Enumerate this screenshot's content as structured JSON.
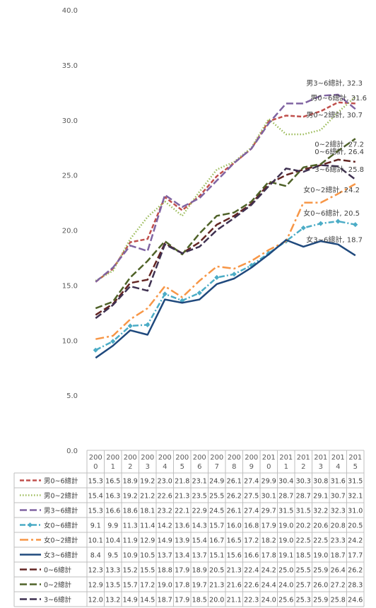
{
  "chart_data": {
    "type": "line",
    "title": "",
    "xlabel": "",
    "ylabel": "",
    "ylim": [
      0,
      40
    ],
    "yticks": [
      "0.0",
      "5.0",
      "10.0",
      "15.0",
      "20.0",
      "25.0",
      "30.0",
      "35.0",
      "40.0"
    ],
    "grid": false,
    "legend": "data-table",
    "categories": [
      [
        "200",
        "0"
      ],
      [
        "200",
        "1"
      ],
      [
        "200",
        "2"
      ],
      [
        "200",
        "3"
      ],
      [
        "200",
        "4"
      ],
      [
        "200",
        "5"
      ],
      [
        "200",
        "6"
      ],
      [
        "200",
        "7"
      ],
      [
        "200",
        "8"
      ],
      [
        "200",
        "9"
      ],
      [
        "201",
        "0"
      ],
      [
        "201",
        "1"
      ],
      [
        "201",
        "2"
      ],
      [
        "201",
        "3"
      ],
      [
        "201",
        "4"
      ],
      [
        "201",
        "5"
      ]
    ],
    "series": [
      {
        "name": "男0~6總計",
        "color": "#c0504d",
        "dash": "dash",
        "values": [
          15.3,
          16.5,
          18.9,
          19.2,
          23.0,
          21.8,
          23.1,
          24.9,
          26.1,
          27.4,
          29.9,
          30.4,
          30.3,
          30.8,
          31.6,
          31.5
        ],
        "label": "男0~6總計, 31.6"
      },
      {
        "name": "男0~2總計",
        "color": "#9bbb59",
        "dash": "dot",
        "values": [
          15.4,
          16.3,
          19.2,
          21.2,
          22.6,
          21.3,
          23.5,
          25.5,
          26.2,
          27.5,
          30.1,
          28.7,
          28.7,
          29.1,
          30.7,
          32.1
        ],
        "label": "男0~2總計, 30.7"
      },
      {
        "name": "男3~6總計",
        "color": "#8064a2",
        "dash": "longdash",
        "values": [
          15.3,
          16.6,
          18.6,
          18.1,
          23.2,
          22.1,
          22.9,
          24.5,
          26.1,
          27.4,
          29.7,
          31.5,
          31.5,
          32.2,
          32.3,
          31.0
        ],
        "label": "男3~6總計, 32.3"
      },
      {
        "name": "女0~6總計",
        "color": "#4bacc6",
        "dash": "dashdot",
        "values": [
          9.1,
          9.9,
          11.3,
          11.4,
          14.2,
          13.6,
          14.3,
          15.7,
          16.0,
          16.8,
          17.9,
          19.0,
          20.2,
          20.6,
          20.8,
          20.5
        ],
        "label": "女0~6總計, 20.5"
      },
      {
        "name": "女0~2總計",
        "color": "#f79646",
        "dash": "longdashdot",
        "values": [
          10.1,
          10.4,
          11.9,
          12.9,
          14.9,
          13.9,
          15.4,
          16.7,
          16.5,
          17.2,
          18.2,
          19.0,
          22.5,
          22.5,
          23.3,
          24.2
        ],
        "label": "女0~2總計, 24.2"
      },
      {
        "name": "女3~6總計",
        "color": "#1f497d",
        "dash": "solid",
        "values": [
          8.4,
          9.5,
          10.9,
          10.5,
          13.7,
          13.4,
          13.7,
          15.1,
          15.6,
          16.6,
          17.8,
          19.1,
          18.5,
          19.0,
          18.7,
          17.7
        ],
        "label": "女3~6總計, 18.7"
      },
      {
        "name": "0~6總計",
        "color": "#632523",
        "dash": "longdash",
        "values": [
          12.3,
          13.3,
          15.2,
          15.5,
          18.8,
          17.9,
          18.9,
          20.5,
          21.3,
          22.4,
          24.2,
          25.0,
          25.5,
          25.9,
          26.4,
          26.2
        ],
        "label": "0~6總計, 26.4"
      },
      {
        "name": "0~2總計",
        "color": "#4f6228",
        "dash": "longdash",
        "values": [
          12.9,
          13.5,
          15.7,
          17.2,
          19.0,
          17.8,
          19.7,
          21.3,
          21.6,
          22.6,
          24.4,
          24.0,
          25.7,
          26.0,
          27.2,
          28.3
        ],
        "label": "0~2總計, 27.2"
      },
      {
        "name": "3~6總計",
        "color": "#3f3151",
        "dash": "longdash",
        "values": [
          12.0,
          13.2,
          14.9,
          14.5,
          18.7,
          17.9,
          18.5,
          20.0,
          21.1,
          22.3,
          24.0,
          25.6,
          25.3,
          25.9,
          25.8,
          24.6
        ],
        "label": "3~6總計, 25.8"
      }
    ]
  }
}
